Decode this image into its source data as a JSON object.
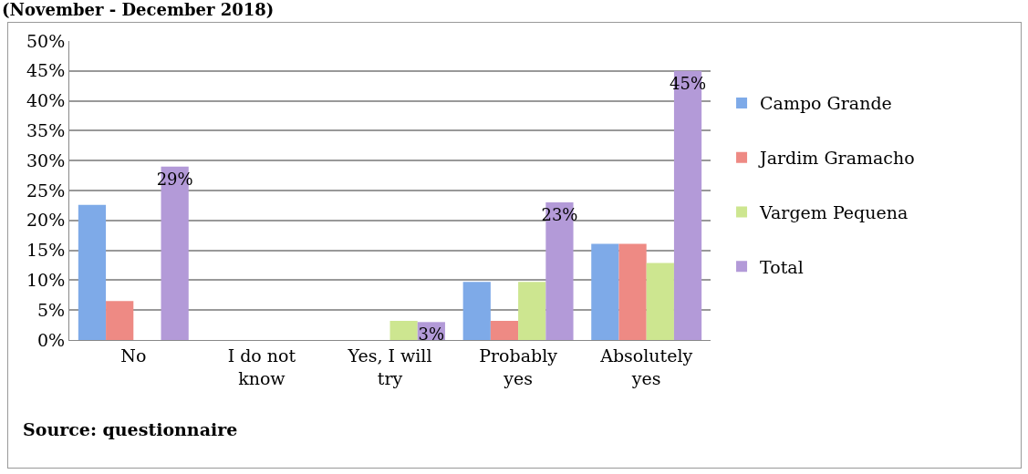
{
  "chart_data": {
    "type": "bar",
    "title": "(November - December 2018)",
    "categories": [
      "No",
      "I do not know",
      "Yes, I will try",
      "Probably yes",
      "Absolutely yes"
    ],
    "series": [
      {
        "name": "Campo Grande",
        "color": "#7eaae8",
        "values": [
          22.6,
          0,
          0,
          9.7,
          16.1
        ]
      },
      {
        "name": "Jardim Gramacho",
        "color": "#ee8a84",
        "values": [
          6.5,
          0,
          0,
          3.2,
          16.1
        ]
      },
      {
        "name": "Vargem Pequena",
        "color": "#cde690",
        "values": [
          0,
          0,
          3.2,
          9.7,
          12.9
        ]
      },
      {
        "name": "Total",
        "color": "#b39ad8",
        "values": [
          29,
          0,
          3,
          23,
          45
        ],
        "value_labels": [
          "29%",
          null,
          "3%",
          "23%",
          "45%"
        ]
      }
    ],
    "ylim": [
      0,
      50
    ],
    "yticks": [
      {
        "value": 0,
        "label": "0%"
      },
      {
        "value": 5,
        "label": "5%"
      },
      {
        "value": 10,
        "label": "10%"
      },
      {
        "value": 15,
        "label": "15%"
      },
      {
        "value": 20,
        "label": "20%"
      },
      {
        "value": 25,
        "label": "25%"
      },
      {
        "value": 30,
        "label": "30%"
      },
      {
        "value": 35,
        "label": "35%"
      },
      {
        "value": 40,
        "label": "40%"
      },
      {
        "value": 45,
        "label": "45%"
      },
      {
        "value": 50,
        "label": "50%"
      }
    ],
    "grid": "y",
    "legend": "right",
    "annotations": [
      "Source: questionnaire"
    ]
  }
}
